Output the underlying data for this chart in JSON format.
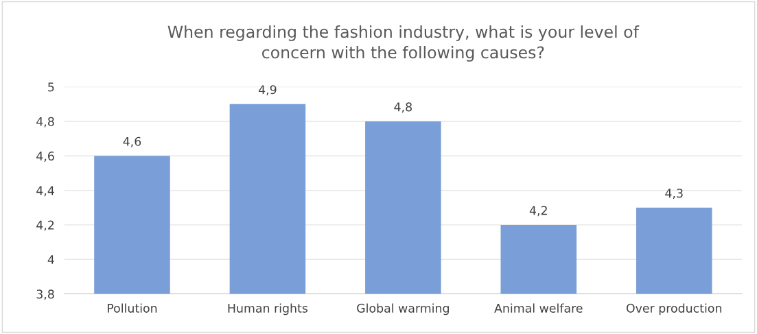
{
  "chart_data": {
    "type": "bar",
    "title": "When regarding the fashion industry, what is your level of\nconcern with the following causes?",
    "categories": [
      "Pollution",
      "Human rights",
      "Global warming",
      "Animal welfare",
      "Over production"
    ],
    "values": [
      4.6,
      4.9,
      4.8,
      4.2,
      4.3
    ],
    "value_labels": [
      "4,6",
      "4,9",
      "4,8",
      "4,2",
      "4,3"
    ],
    "color": "#7a9fd8",
    "ylim": [
      3.8,
      5
    ],
    "yticks": [
      {
        "value": 3.8,
        "label": "3,8"
      },
      {
        "value": 4,
        "label": "4"
      },
      {
        "value": 4.2,
        "label": "4,2"
      },
      {
        "value": 4.4,
        "label": "4,4"
      },
      {
        "value": 4.6,
        "label": "4,6"
      },
      {
        "value": 4.8,
        "label": "4,8"
      },
      {
        "value": 5,
        "label": "5"
      }
    ],
    "grid": "y",
    "legend": false
  }
}
